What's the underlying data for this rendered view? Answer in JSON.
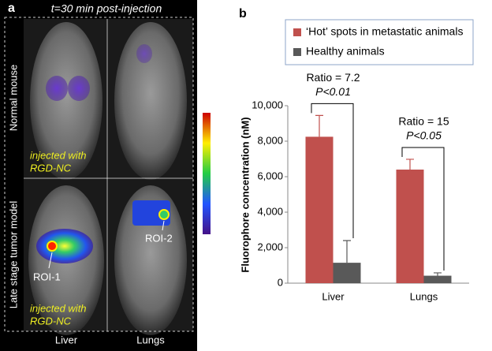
{
  "panel_a": {
    "label": "a",
    "title": "t=30 min post-injection",
    "row_labels": [
      "Normal mouse",
      "Late stage tumor model"
    ],
    "col_labels": [
      "Liver",
      "Lungs"
    ],
    "notes": [
      [
        "injected with",
        "RGD-NC"
      ],
      [
        "injected with",
        "RGD-NC"
      ]
    ],
    "roi_labels": [
      "ROI-1",
      "ROI-2"
    ]
  },
  "chart_data": {
    "type": "bar",
    "panel_label": "b",
    "ylabel": "Fluorophore concentration (nM)",
    "categories": [
      "Liver",
      "Lungs"
    ],
    "series": [
      {
        "name": "‘Hot’ spots in metastatic animals",
        "color": "#c0504d",
        "values": [
          8250,
          6400
        ],
        "errors": [
          1200,
          580
        ]
      },
      {
        "name": "Healthy animals",
        "color": "#595959",
        "values": [
          1150,
          420
        ],
        "errors": [
          1250,
          160
        ]
      }
    ],
    "annotations": [
      [
        "Ratio = 7.2",
        "P<0.01"
      ],
      [
        "Ratio = 15",
        "P<0.05"
      ]
    ],
    "ylim": [
      0,
      10000
    ],
    "yticks": [
      0,
      {
        "value": 2000,
        "label": "2,000"
      },
      {
        "value": 4000,
        "label": "4,000"
      },
      {
        "value": 6000,
        "label": "6,000"
      },
      {
        "value": 8000,
        "label": "8,000"
      },
      {
        "value": 10000,
        "label": "10,000"
      }
    ],
    "legend": "top"
  }
}
